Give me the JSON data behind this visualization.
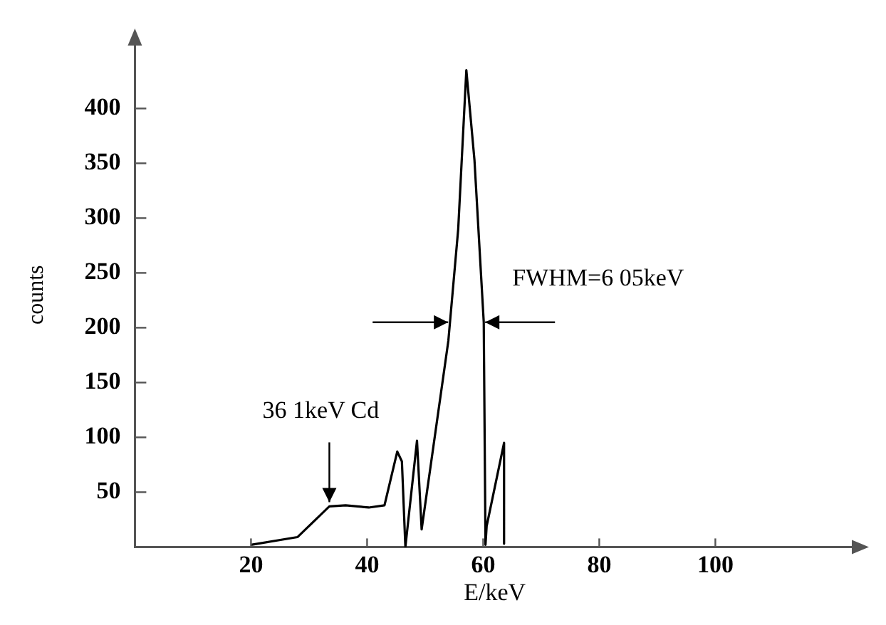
{
  "chart_data": {
    "type": "line",
    "xlabel": "E/keV",
    "ylabel": "counts",
    "x": [
      20,
      28,
      33.5,
      36.3,
      40.3,
      43,
      45.2,
      46,
      46.6,
      48.6,
      49.4,
      54,
      55.7,
      57.1,
      58.5,
      60.1,
      60.4,
      60.6,
      63.6,
      63.6
    ],
    "values": [
      2,
      9,
      37,
      38,
      36,
      38,
      87,
      78,
      0,
      97,
      16,
      188,
      290,
      435,
      353,
      205,
      2,
      19,
      95,
      3
    ],
    "color": "#000000",
    "xlim": [
      0,
      124
    ],
    "xticks": [
      20,
      40,
      60,
      80,
      100
    ],
    "ylim": [
      0,
      460
    ],
    "yticks": [
      50,
      100,
      150,
      200,
      250,
      300,
      350,
      400
    ],
    "grid": false,
    "legend": false,
    "marker": "none",
    "line_style": "solid",
    "annotations": [
      {
        "text": "36 1keV Cd",
        "x": 33.5,
        "y": 37
      },
      {
        "text": "FWHM=6 05keV",
        "x": 60.1,
        "y": 205
      }
    ]
  }
}
